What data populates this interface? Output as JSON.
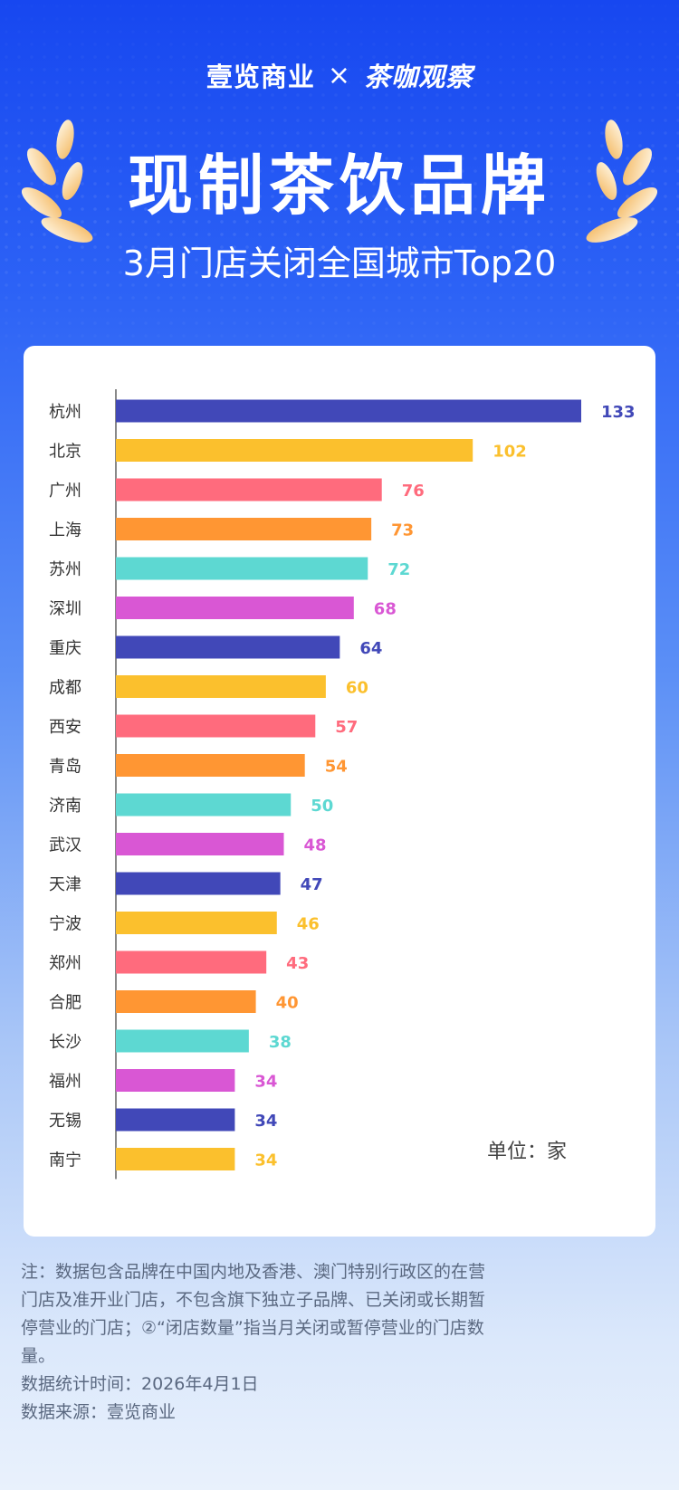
{
  "header": {
    "brand_left": "壹览商业",
    "separator": "×",
    "brand_right": "茶咖观察",
    "title": "现制茶饮品牌",
    "subtitle": "3月门店关闭全国城市Top20"
  },
  "unit_label": "单位：家",
  "notes": {
    "note": "注：数据包含品牌在中国内地及香港、澳门特别行政区的在营门店及准开业门店，不包含旗下独立子品牌、已关闭或长期暂停营业的门店；②“闭店数量”指当月关闭或暂停营业的门店数量。",
    "stat_time": "数据统计时间：2026年4月1日",
    "source": "数据来源：壹览商业"
  },
  "chart_data": {
    "type": "bar",
    "orientation": "horizontal",
    "title": "",
    "xlabel": "",
    "ylabel": "",
    "categories": [
      "杭州",
      "北京",
      "广州",
      "上海",
      "苏州",
      "深圳",
      "重庆",
      "成都",
      "西安",
      "青岛",
      "济南",
      "武汉",
      "天津",
      "宁波",
      "郑州",
      "合肥",
      "长沙",
      "福州",
      "无锡",
      "南宁"
    ],
    "values": [
      133,
      102,
      76,
      73,
      72,
      68,
      64,
      60,
      57,
      54,
      50,
      48,
      47,
      46,
      43,
      40,
      38,
      34,
      34,
      34
    ],
    "xlim": [
      0,
      133
    ],
    "grid": false,
    "legend": "none",
    "colors": [
      "#4148b8",
      "#fbc02d",
      "#ff6b7d",
      "#ff9633",
      "#5dd8d2",
      "#d957d4"
    ]
  },
  "colors": {
    "accent": "#1747f0",
    "laurel_light": "#fff6df",
    "laurel_dark": "#f7c36d"
  }
}
